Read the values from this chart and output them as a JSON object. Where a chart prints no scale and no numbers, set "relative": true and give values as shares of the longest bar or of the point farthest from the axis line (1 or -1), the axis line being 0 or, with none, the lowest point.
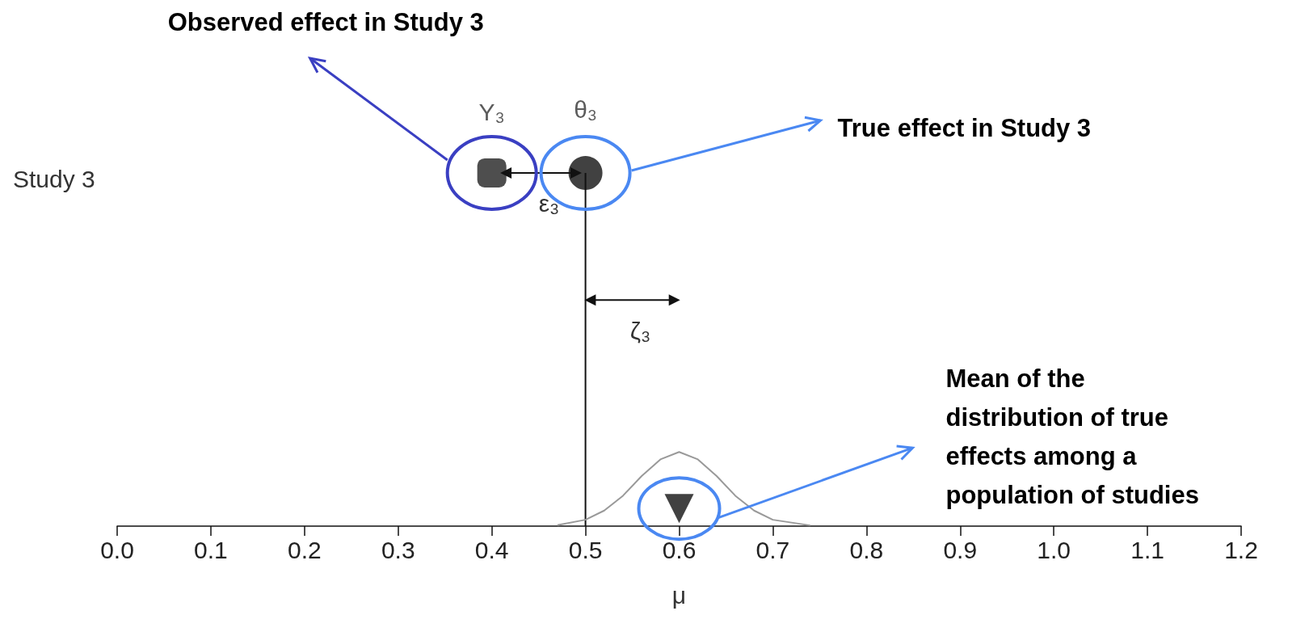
{
  "chart_data": {
    "type": "scatter",
    "xlabel": "μ",
    "relative": true,
    "tick_labels": "x",
    "grid": false,
    "xlim": [
      0,
      1.2
    ],
    "xticks": [
      {
        "value": 0,
        "label": "0.0"
      },
      {
        "value": 0.1,
        "label": "0.1"
      },
      {
        "value": 0.2,
        "label": "0.2"
      },
      {
        "value": 0.3,
        "label": "0.3"
      },
      {
        "value": 0.4,
        "label": "0.4"
      },
      {
        "value": 0.5,
        "label": "0.5"
      },
      {
        "value": 0.6,
        "label": "0.6"
      },
      {
        "value": 0.7,
        "label": "0.7"
      },
      {
        "value": 0.8,
        "label": "0.8"
      },
      {
        "value": 0.9,
        "label": "0.9"
      },
      {
        "value": 1,
        "label": "1.0"
      },
      {
        "value": 1.1,
        "label": "1.1"
      },
      {
        "value": 1.2,
        "label": "1.2"
      }
    ],
    "series": [
      {
        "type": "line",
        "color": "#111111",
        "marker": "none",
        "x": [
          0.5,
          0.5
        ],
        "values": [
          0,
          1
        ]
      },
      {
        "type": "line",
        "color": "#999999",
        "marker": "none",
        "x": [
          0.47,
          0.5,
          0.52,
          0.54,
          0.56,
          0.58,
          0.6,
          0.62,
          0.64,
          0.66,
          0.68,
          0.7,
          0.74
        ],
        "values": [
          0.003,
          0.018,
          0.044,
          0.086,
          0.142,
          0.189,
          0.21,
          0.189,
          0.142,
          0.086,
          0.044,
          0.018,
          0.002
        ]
      },
      {
        "type": "line",
        "name": "ε₃",
        "color": "#111111",
        "marker": "triangle",
        "x": [
          0.415,
          0.49
        ],
        "values": [
          1,
          1
        ]
      },
      {
        "type": "line",
        "name": "ζ₃",
        "color": "#111111",
        "marker": "triangle",
        "x": [
          0.505,
          0.595
        ],
        "values": [
          0.64,
          0.64
        ]
      },
      {
        "name": "Y₃",
        "color": "#222222",
        "marker": "square",
        "x": [
          0.4
        ],
        "values": [
          1
        ]
      },
      {
        "name": "θ₃",
        "color": "#111111",
        "marker": "circle",
        "x": [
          0.5
        ],
        "values": [
          1
        ]
      },
      {
        "color": "#111111",
        "marker": "triangle",
        "x": [
          0.6
        ],
        "values": [
          0.05
        ]
      }
    ],
    "annotations": [
      "Study 3",
      "Observed effect in Study 3",
      "True effect in Study 3",
      "Mean of the\ndistribution of true\neffects among a\npopulation of studies"
    ]
  }
}
